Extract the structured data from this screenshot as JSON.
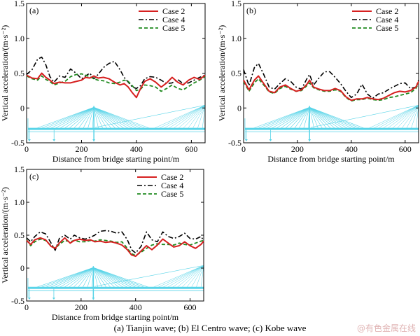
{
  "caption": "(a)   Tianjin wave; (b) El Centro wave; (c) Kobe wave",
  "watermark": "@有色金属在线",
  "colors": {
    "case2": "#d62020",
    "case4": "#000000",
    "case5": "#1f8a1f",
    "bridge": "#58d4e8"
  },
  "chart_data": [
    {
      "panel_label": "(a)",
      "type": "line",
      "xlabel": "Distance from bridge starting point/m",
      "ylabel": "Vertical acceleration/(m·s⁻²)",
      "xlim": [
        0,
        650
      ],
      "ylim": [
        -0.5,
        1.5
      ],
      "xticks": [
        "0",
        "200",
        "400",
        "600"
      ],
      "yticks": [
        "-0.5",
        "0",
        "0.5",
        "1.0",
        "1.5"
      ],
      "legend_position": "top-right",
      "series": [
        {
          "name": "Case 2",
          "style": "solid",
          "x": [
            0,
            20,
            40,
            55,
            70,
            85,
            100,
            120,
            140,
            160,
            180,
            200,
            215,
            230,
            245,
            260,
            280,
            300,
            320,
            340,
            355,
            370,
            385,
            400,
            415,
            430,
            450,
            470,
            490,
            510,
            530,
            550,
            570,
            590,
            610,
            630,
            650
          ],
          "y": [
            0.47,
            0.43,
            0.42,
            0.5,
            0.44,
            0.4,
            0.35,
            0.37,
            0.36,
            0.36,
            0.38,
            0.4,
            0.44,
            0.43,
            0.46,
            0.43,
            0.44,
            0.42,
            0.37,
            0.33,
            0.35,
            0.3,
            0.22,
            0.15,
            0.28,
            0.38,
            0.42,
            0.37,
            0.3,
            0.36,
            0.44,
            0.37,
            0.33,
            0.4,
            0.44,
            0.41,
            0.47
          ]
        },
        {
          "name": "Case 4",
          "style": "dashdot",
          "x": [
            0,
            20,
            40,
            55,
            70,
            85,
            100,
            120,
            140,
            160,
            180,
            200,
            215,
            230,
            245,
            260,
            280,
            300,
            320,
            340,
            355,
            370,
            385,
            400,
            415,
            430,
            450,
            470,
            490,
            510,
            530,
            550,
            570,
            590,
            610,
            630,
            650
          ],
          "y": [
            0.48,
            0.55,
            0.7,
            0.73,
            0.62,
            0.45,
            0.37,
            0.46,
            0.44,
            0.56,
            0.5,
            0.42,
            0.46,
            0.5,
            0.42,
            0.48,
            0.58,
            0.64,
            0.67,
            0.55,
            0.44,
            0.37,
            0.3,
            0.28,
            0.32,
            0.42,
            0.45,
            0.44,
            0.4,
            0.35,
            0.36,
            0.41,
            0.35,
            0.36,
            0.4,
            0.44,
            0.47
          ]
        },
        {
          "name": "Case 5",
          "style": "dashed",
          "x": [
            0,
            20,
            40,
            55,
            70,
            85,
            100,
            120,
            140,
            160,
            180,
            200,
            215,
            230,
            245,
            260,
            280,
            300,
            320,
            340,
            355,
            370,
            385,
            400,
            415,
            430,
            450,
            470,
            490,
            510,
            530,
            550,
            570,
            590,
            610,
            630,
            650
          ],
          "y": [
            0.46,
            0.42,
            0.4,
            0.46,
            0.41,
            0.38,
            0.33,
            0.36,
            0.38,
            0.45,
            0.48,
            0.49,
            0.47,
            0.45,
            0.42,
            0.4,
            0.39,
            0.36,
            0.35,
            0.37,
            0.4,
            0.38,
            0.32,
            0.25,
            0.27,
            0.33,
            0.32,
            0.3,
            0.24,
            0.28,
            0.33,
            0.28,
            0.26,
            0.31,
            0.36,
            0.4,
            0.45
          ]
        }
      ]
    },
    {
      "panel_label": "(b)",
      "type": "line",
      "xlabel": "Distance from bridge starting point/m",
      "ylabel": "Vertical acceleration/(m·s⁻²)",
      "xlim": [
        0,
        650
      ],
      "ylim": [
        -0.5,
        1.5
      ],
      "xticks": [
        "0",
        "200",
        "400",
        "600"
      ],
      "yticks": [
        "-0.5",
        "0",
        "0.5",
        "1.0",
        "1.5"
      ],
      "legend_position": "top-right",
      "series": [
        {
          "name": "Case 2",
          "style": "solid",
          "x": [
            0,
            20,
            40,
            55,
            75,
            95,
            115,
            135,
            155,
            175,
            195,
            215,
            235,
            245,
            260,
            280,
            300,
            320,
            340,
            360,
            380,
            400,
            420,
            440,
            460,
            480,
            500,
            520,
            540,
            560,
            580,
            600,
            620,
            640,
            650
          ],
          "y": [
            0.4,
            0.26,
            0.4,
            0.46,
            0.35,
            0.24,
            0.22,
            0.3,
            0.33,
            0.28,
            0.24,
            0.26,
            0.34,
            0.4,
            0.3,
            0.27,
            0.25,
            0.25,
            0.28,
            0.25,
            0.16,
            0.11,
            0.13,
            0.13,
            0.15,
            0.13,
            0.12,
            0.14,
            0.18,
            0.22,
            0.24,
            0.23,
            0.25,
            0.3,
            0.38
          ]
        },
        {
          "name": "Case 4",
          "style": "dashdot",
          "x": [
            0,
            20,
            40,
            55,
            75,
            95,
            115,
            135,
            155,
            175,
            195,
            215,
            235,
            245,
            260,
            280,
            300,
            320,
            340,
            360,
            380,
            400,
            420,
            440,
            460,
            480,
            500,
            520,
            540,
            560,
            580,
            600,
            620,
            640,
            650
          ],
          "y": [
            0.55,
            0.32,
            0.58,
            0.64,
            0.48,
            0.3,
            0.27,
            0.35,
            0.42,
            0.38,
            0.3,
            0.27,
            0.42,
            0.48,
            0.33,
            0.43,
            0.52,
            0.52,
            0.44,
            0.35,
            0.24,
            0.15,
            0.2,
            0.34,
            0.2,
            0.14,
            0.2,
            0.22,
            0.27,
            0.31,
            0.35,
            0.36,
            0.28,
            0.3,
            0.4
          ]
        },
        {
          "name": "Case 5",
          "style": "dashed",
          "x": [
            0,
            20,
            40,
            55,
            75,
            95,
            115,
            135,
            155,
            175,
            195,
            215,
            235,
            245,
            260,
            280,
            300,
            320,
            340,
            360,
            380,
            400,
            420,
            440,
            460,
            480,
            500,
            520,
            540,
            560,
            580,
            600,
            620,
            640,
            650
          ],
          "y": [
            0.38,
            0.24,
            0.36,
            0.42,
            0.33,
            0.23,
            0.21,
            0.28,
            0.31,
            0.27,
            0.24,
            0.25,
            0.32,
            0.36,
            0.29,
            0.26,
            0.24,
            0.24,
            0.26,
            0.24,
            0.15,
            0.1,
            0.12,
            0.12,
            0.14,
            0.12,
            0.11,
            0.12,
            0.15,
            0.16,
            0.18,
            0.2,
            0.22,
            0.28,
            0.36
          ]
        }
      ]
    },
    {
      "panel_label": "(c)",
      "type": "line",
      "xlabel": "Distance from bridge starting point/m",
      "ylabel": "Vertical acceleration/(m·s⁻²)",
      "xlim": [
        0,
        650
      ],
      "ylim": [
        -0.5,
        1.5
      ],
      "xticks": [
        "0",
        "200",
        "400",
        "600"
      ],
      "yticks": [
        "-0.5",
        "0",
        "0.5",
        "1.0",
        "1.5"
      ],
      "legend_position": "top-right",
      "series": [
        {
          "name": "Case 2",
          "style": "solid",
          "x": [
            0,
            15,
            30,
            50,
            70,
            90,
            105,
            120,
            140,
            160,
            175,
            195,
            215,
            235,
            250,
            270,
            290,
            310,
            330,
            350,
            370,
            385,
            400,
            420,
            440,
            460,
            480,
            500,
            520,
            540,
            560,
            580,
            600,
            620,
            640,
            650
          ],
          "y": [
            0.42,
            0.36,
            0.43,
            0.46,
            0.43,
            0.33,
            0.3,
            0.38,
            0.46,
            0.38,
            0.42,
            0.44,
            0.42,
            0.43,
            0.4,
            0.41,
            0.39,
            0.4,
            0.38,
            0.35,
            0.28,
            0.2,
            0.18,
            0.26,
            0.34,
            0.28,
            0.35,
            0.44,
            0.38,
            0.32,
            0.34,
            0.4,
            0.34,
            0.3,
            0.36,
            0.41
          ]
        },
        {
          "name": "Case 4",
          "style": "dashdot",
          "x": [
            0,
            15,
            30,
            50,
            70,
            90,
            105,
            120,
            140,
            160,
            175,
            195,
            215,
            235,
            250,
            270,
            290,
            310,
            330,
            350,
            370,
            385,
            400,
            420,
            440,
            460,
            480,
            500,
            520,
            540,
            560,
            580,
            600,
            620,
            640,
            650
          ],
          "y": [
            0.46,
            0.4,
            0.48,
            0.55,
            0.52,
            0.38,
            0.27,
            0.45,
            0.5,
            0.44,
            0.5,
            0.46,
            0.44,
            0.47,
            0.5,
            0.56,
            0.57,
            0.56,
            0.53,
            0.55,
            0.43,
            0.28,
            0.23,
            0.33,
            0.55,
            0.43,
            0.4,
            0.55,
            0.48,
            0.45,
            0.48,
            0.53,
            0.45,
            0.44,
            0.48,
            0.42
          ]
        },
        {
          "name": "Case 5",
          "style": "dashed",
          "x": [
            0,
            15,
            30,
            50,
            70,
            90,
            105,
            120,
            140,
            160,
            175,
            195,
            215,
            235,
            250,
            270,
            290,
            310,
            330,
            350,
            370,
            385,
            400,
            420,
            440,
            460,
            480,
            500,
            520,
            540,
            560,
            580,
            600,
            620,
            640,
            650
          ],
          "y": [
            0.43,
            0.34,
            0.4,
            0.44,
            0.42,
            0.34,
            0.3,
            0.36,
            0.42,
            0.4,
            0.42,
            0.4,
            0.4,
            0.42,
            0.41,
            0.43,
            0.42,
            0.41,
            0.39,
            0.4,
            0.3,
            0.22,
            0.19,
            0.24,
            0.3,
            0.35,
            0.37,
            0.36,
            0.36,
            0.35,
            0.38,
            0.36,
            0.35,
            0.38,
            0.41,
            0.42
          ]
        }
      ]
    }
  ]
}
